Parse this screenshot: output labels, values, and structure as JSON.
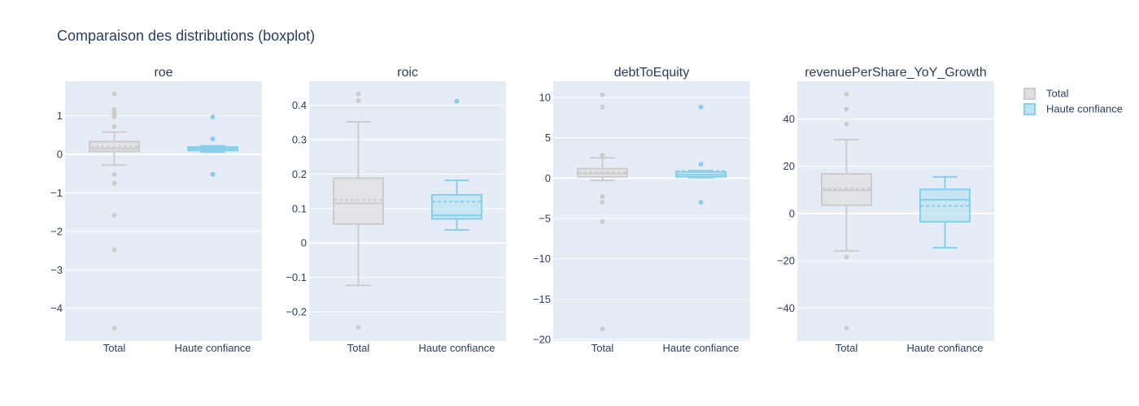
{
  "title": "Comparaison des distributions (boxplot)",
  "colors": {
    "plot_bg": "#e5ecf6",
    "grid": "#ffffff",
    "text": "#2a3f5f",
    "total_line": "#cccccc",
    "total_fill": "#e0e0e0",
    "high_line": "#87ceeb",
    "high_fill": "#bde3f3"
  },
  "legend": {
    "placement": "top-right",
    "items": [
      {
        "label": "Total",
        "series": "total"
      },
      {
        "label": "Haute confiance",
        "series": "high"
      }
    ]
  },
  "chart_data": [
    {
      "type": "box",
      "title": "roe",
      "categories": [
        "Total",
        "Haute confiance"
      ],
      "ylim": [
        -4.85,
        1.9
      ],
      "yticks": [
        1,
        0,
        -1,
        -2,
        -3,
        -4
      ],
      "ytick_labels": [
        "1",
        "0",
        "−1",
        "−2",
        "−3",
        "−4"
      ],
      "series": [
        {
          "name": "Total",
          "key": "total",
          "q1": 0.08,
          "median": 0.15,
          "q3": 0.33,
          "mean": 0.2,
          "lowerfence": -0.28,
          "upperfence": 0.58,
          "outliers": [
            1.57,
            1.16,
            1.12,
            1.03,
            0.98,
            0.72,
            -0.52,
            -0.75,
            -1.58,
            -2.48,
            -4.52
          ]
        },
        {
          "name": "Haute confiance",
          "key": "high",
          "q1": 0.1,
          "median": 0.14,
          "q3": 0.19,
          "mean": 0.17,
          "lowerfence": 0.06,
          "upperfence": 0.22,
          "outliers": [
            0.97,
            0.4,
            -0.52
          ]
        }
      ]
    },
    {
      "type": "box",
      "title": "roic",
      "categories": [
        "Total",
        "Haute confiance"
      ],
      "ylim": [
        -0.285,
        0.47
      ],
      "yticks": [
        0.4,
        0.3,
        0.2,
        0.1,
        0,
        -0.1,
        -0.2
      ],
      "ytick_labels": [
        "0.4",
        "0.3",
        "0.2",
        "0.1",
        "0",
        "−0.1",
        "−0.2"
      ],
      "series": [
        {
          "name": "Total",
          "key": "total",
          "q1": 0.055,
          "median": 0.115,
          "q3": 0.188,
          "mean": 0.125,
          "lowerfence": -0.123,
          "upperfence": 0.352,
          "outliers": [
            0.433,
            0.413,
            -0.245
          ]
        },
        {
          "name": "Haute confiance",
          "key": "high",
          "q1": 0.07,
          "median": 0.08,
          "q3": 0.14,
          "mean": 0.12,
          "lowerfence": 0.038,
          "upperfence": 0.182,
          "outliers": [
            0.412
          ]
        }
      ]
    },
    {
      "type": "box",
      "title": "debtToEquity",
      "categories": [
        "Total",
        "Haute confiance"
      ],
      "ylim": [
        -20.2,
        12
      ],
      "yticks": [
        10,
        5,
        0,
        -5,
        -10,
        -15,
        -20
      ],
      "ytick_labels": [
        "10",
        "5",
        "0",
        "−5",
        "−10",
        "−15",
        "−20"
      ],
      "series": [
        {
          "name": "Total",
          "key": "total",
          "q1": 0.15,
          "median": 0.55,
          "q3": 1.15,
          "mean": 0.7,
          "lowerfence": -0.3,
          "upperfence": 2.5,
          "outliers": [
            10.3,
            8.8,
            2.8,
            -2.3,
            -3.0,
            -5.4,
            -18.7
          ]
        },
        {
          "name": "Haute confiance",
          "key": "high",
          "q1": 0.15,
          "median": 0.4,
          "q3": 0.75,
          "mean": 0.85,
          "lowerfence": 0.05,
          "upperfence": 0.9,
          "outliers": [
            8.8,
            1.7,
            -3.0
          ]
        }
      ]
    },
    {
      "type": "box",
      "title": "revenuePerShare_YoY_Growth",
      "categories": [
        "Total",
        "Haute confiance"
      ],
      "ylim": [
        -54,
        56
      ],
      "yticks": [
        40,
        20,
        0,
        -20,
        -40
      ],
      "ytick_labels": [
        "40",
        "20",
        "0",
        "−20",
        "−40"
      ],
      "series": [
        {
          "name": "Total",
          "key": "total",
          "q1": 3.5,
          "median": 9.8,
          "q3": 16.8,
          "mean": 10.5,
          "lowerfence": -15.8,
          "upperfence": 31.3,
          "outliers": [
            50.5,
            44.2,
            37.8,
            -18.5,
            -48.5
          ]
        },
        {
          "name": "Haute confiance",
          "key": "high",
          "q1": -3.5,
          "median": 5.8,
          "q3": 10.2,
          "mean": 3.2,
          "lowerfence": -14.5,
          "upperfence": 15.5,
          "outliers": []
        }
      ]
    }
  ]
}
